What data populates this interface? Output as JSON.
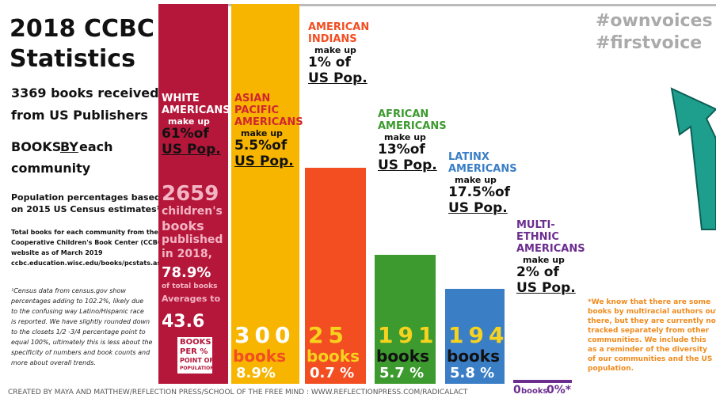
{
  "header": {
    "title_line1": "2018 CCBC",
    "title_line2": "Statistics",
    "hashtags": [
      "#ownvoices",
      "#firstvoice"
    ]
  },
  "left": {
    "received": [
      "3369 books received",
      "from US Publishers"
    ],
    "by_pre": "BOOKS ",
    "by_u": "BY",
    "by_post": " each",
    "by_line2": "community",
    "census_note": [
      "Population percentages based",
      "on 2015 US Census estimates¹"
    ],
    "totals_note": [
      "Total books for each community from the",
      "Cooperative Children's Book Center (CCBC)",
      "website as of March 2019",
      "ccbc.education.wisc.edu/books/pcstats.asp"
    ],
    "footnote": [
      "¹Census data from census.gov show",
      "percentages adding to 102.2%, likely due",
      "to the confusing way Latino/Hispanic race",
      "is reported. We have slightly rounded down",
      "to the closets 1/2 -3/4 percentage point to",
      "equal 100%, ultimately this is less about the",
      "specificity of numbers and book counts and",
      "more about overall trends."
    ]
  },
  "columns": [
    {
      "heading": [
        "WHITE",
        "AMERICANS"
      ],
      "make_up": "make up",
      "pct": "61%of",
      "pop": "US Pop.",
      "bottom": [
        "2659",
        "children's",
        "books",
        "published",
        "in 2018,",
        "78.9%",
        "of total books",
        "Averages to",
        "43.6",
        "BOOKS",
        "PER %",
        "POINT OF",
        "POPULATION"
      ]
    },
    {
      "heading": [
        "ASIAN",
        "PACIFIC",
        "AMERICANS"
      ],
      "make_up": "make up",
      "pct": "5.5%of",
      "pop": "US Pop.",
      "bottom": [
        "300",
        "books",
        "8.9%"
      ]
    },
    {
      "heading": [
        "AMERICAN",
        "INDIANS"
      ],
      "make_up": "make up",
      "pct": "1% of",
      "pop": "US Pop.",
      "bottom": [
        "25",
        "books",
        "0.7 %"
      ]
    },
    {
      "heading": [
        "AFRICAN",
        "AMERICANS"
      ],
      "make_up": "make up",
      "pct": "13%of",
      "pop": "US Pop.",
      "bottom": [
        "191",
        "books",
        "5.7 %"
      ]
    },
    {
      "heading": [
        "LATINX",
        "AMERICANS"
      ],
      "make_up": "make up",
      "pct": "17.5%of",
      "pop": "US Pop.",
      "bottom": [
        "194",
        "books",
        "5.8 %"
      ]
    },
    {
      "heading": [
        "MULTI-",
        "ETHNIC",
        "AMERICANS"
      ],
      "make_up": "make up",
      "pct": "2% of",
      "pop": "US Pop.",
      "bottom": [
        "0",
        "books",
        "0%*"
      ]
    }
  ],
  "note": [
    "*We know that there are some",
    "books by multiracial authors out",
    "there, but they are currently not",
    "tracked separately from other",
    "communities. We include this",
    "as a reminder of the diversity",
    "of our communities and the US",
    "population."
  ],
  "credit": "CREATED BY MAYA AND MATTHEW/REFLECTION PRESS/SCHOOL OF THE FREE MIND : WWW.REFLECTIONPRESS.COM/RADICALACT"
}
